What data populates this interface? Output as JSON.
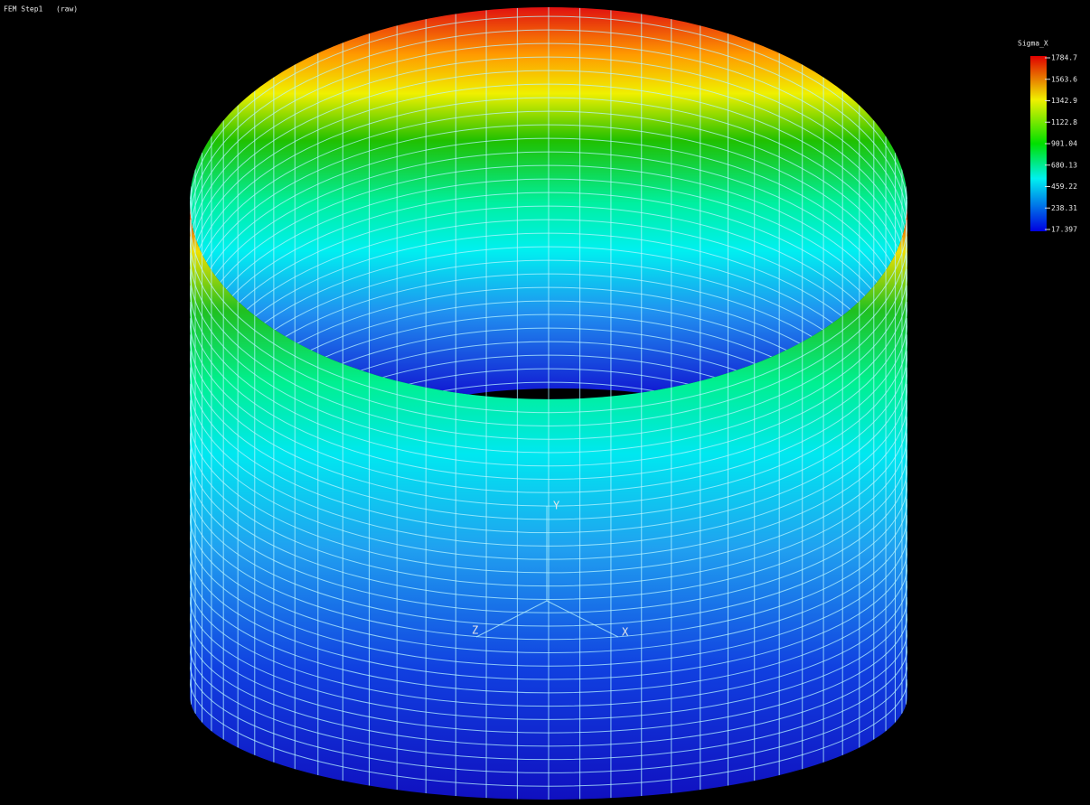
{
  "header": {
    "title": "FEM Step1",
    "mode": "(raw)"
  },
  "legend": {
    "title": "Sigma_X",
    "labels": [
      1784.7,
      1563.6,
      1342.9,
      1122.8,
      901.04,
      680.13,
      459.22,
      238.31,
      17.397
    ]
  },
  "triad": {
    "y": "Y",
    "z": "Z",
    "x": "X"
  }
}
